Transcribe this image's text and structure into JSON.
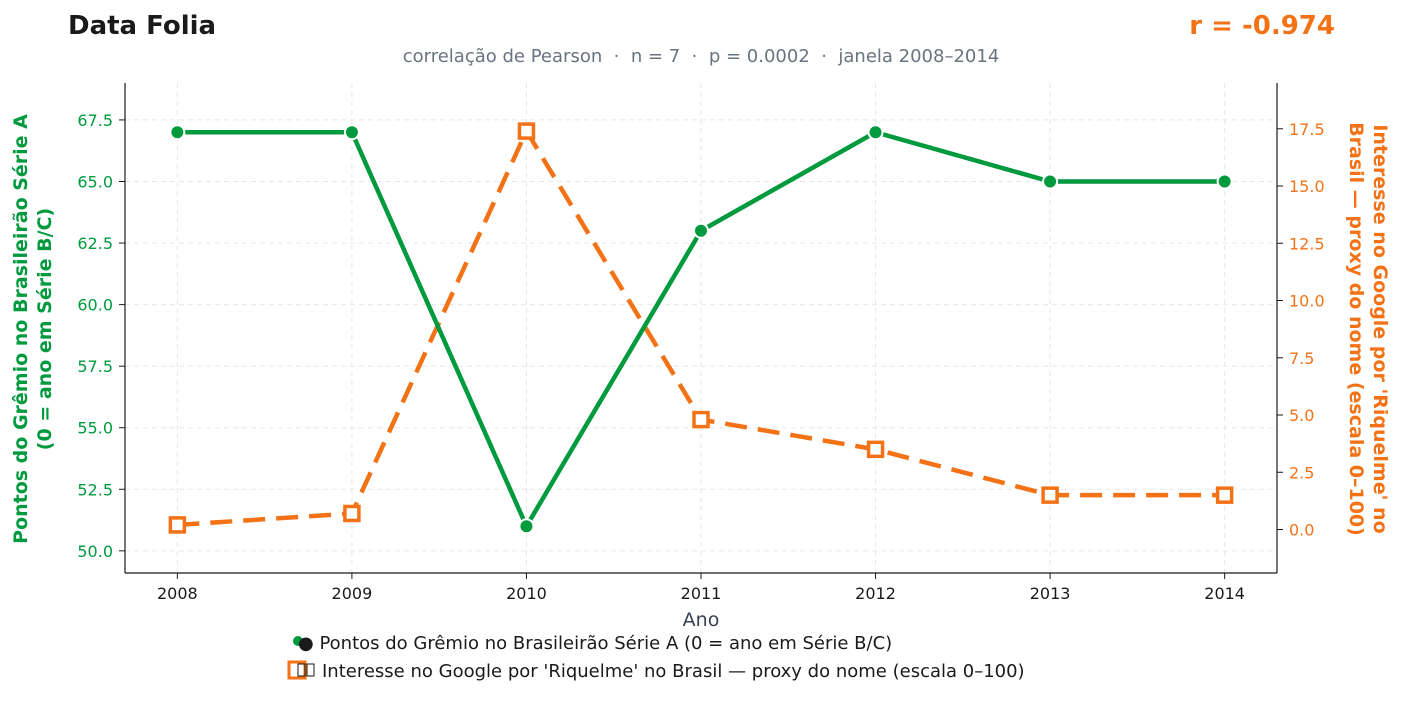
{
  "header": {
    "brand": "Data Folia",
    "r_label": "r = -0.974",
    "subtitle": "correlação de Pearson  ·  n = 7  ·  p = 0.0002  ·  janela 2008–2014"
  },
  "colors": {
    "green": "#009a3e",
    "orange": "#f47216",
    "text_dark": "#1a1a1a",
    "subtitle": "#6b7280",
    "axis_label": "#374151",
    "grid": "#e5e7eb"
  },
  "chart_data": {
    "type": "line",
    "xlabel": "Ano",
    "x": [
      2008,
      2009,
      2010,
      2011,
      2012,
      2013,
      2014
    ],
    "xlim": [
      2007.7,
      2014.3
    ],
    "grid": true,
    "legend_position": "bottom-center",
    "series": [
      {
        "name": "Pontos do Grêmio no Brasileirão Série A (0 = ano em Série B/C)",
        "axis": "left",
        "color": "#009a3e",
        "line_style": "solid",
        "marker": "circle",
        "values": [
          67,
          67,
          51,
          63,
          67,
          65,
          65
        ]
      },
      {
        "name": "Interesse no Google por 'Riquelme' no Brasil — proxy do nome (escala 0–100)",
        "axis": "right",
        "color": "#f47216",
        "line_style": "dashed",
        "marker": "square",
        "values": [
          0.2,
          0.7,
          17.4,
          4.8,
          3.5,
          1.5,
          1.5
        ]
      }
    ],
    "y_left": {
      "label_line1": "Pontos do Grêmio no Brasileirão Série A",
      "label_line2": "(0 = ano em Série B/C)",
      "ylim": [
        49.1,
        69.0
      ],
      "ticks": [
        50.0,
        52.5,
        55.0,
        57.5,
        60.0,
        62.5,
        65.0,
        67.5
      ],
      "tick_labels": [
        "50.0",
        "52.5",
        "55.0",
        "57.5",
        "60.0",
        "62.5",
        "65.0",
        "67.5"
      ]
    },
    "y_right": {
      "label_line1": "Interesse no Google por 'Riquelme' no",
      "label_line2": "Brasil — proxy do nome (escala 0–100)",
      "ylim": [
        -1.9,
        19.5
      ],
      "ticks": [
        0.0,
        2.5,
        5.0,
        7.5,
        10.0,
        12.5,
        15.0,
        17.5
      ],
      "tick_labels": [
        "0.0",
        "2.5",
        "5.0",
        "7.5",
        "10.0",
        "12.5",
        "15.0",
        "17.5"
      ]
    },
    "x_tick_labels": [
      "2008",
      "2009",
      "2010",
      "2011",
      "2012",
      "2013",
      "2014"
    ]
  }
}
